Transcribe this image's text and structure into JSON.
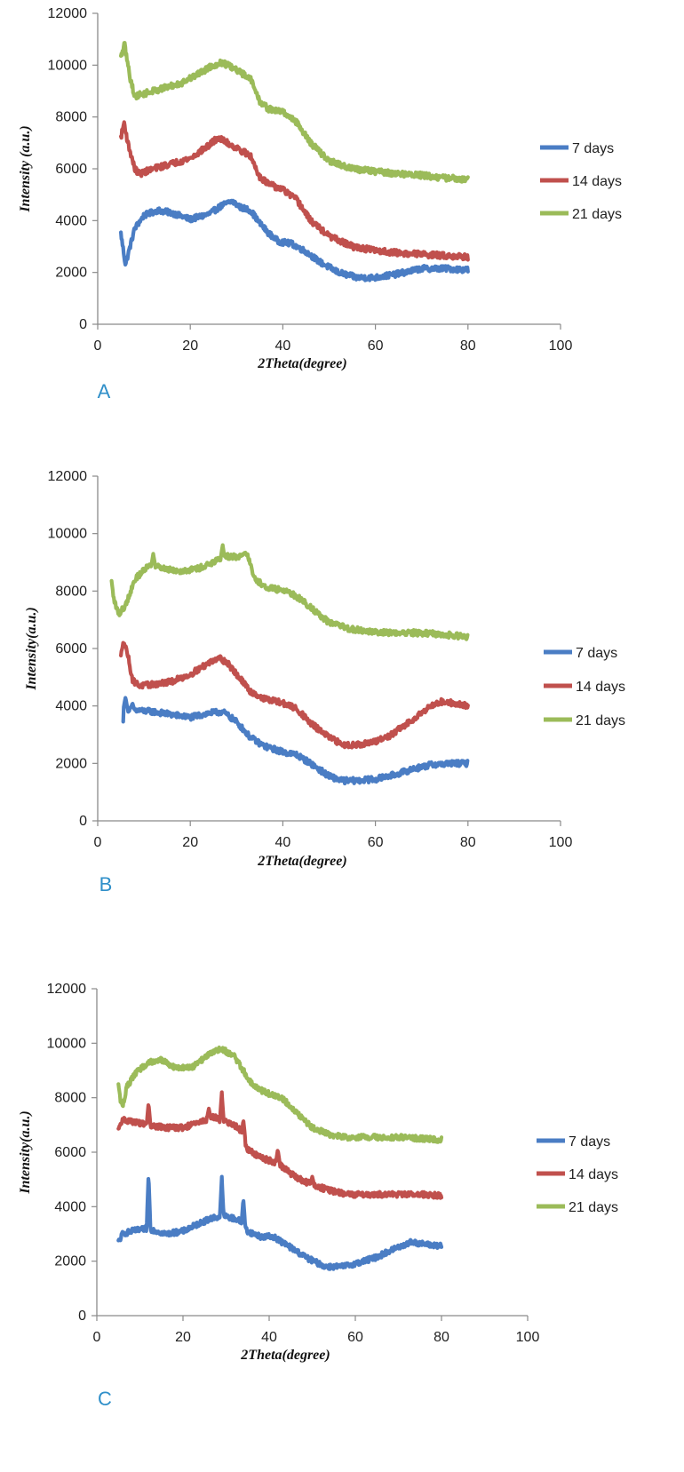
{
  "chart_data": [
    {
      "type": "line",
      "panel_label": "A",
      "xlabel": "2Theta(degree)",
      "ylabel": "Intensity (a.u.)",
      "xlim": [
        0,
        100
      ],
      "ylim": [
        0,
        12000
      ],
      "xticks": [
        0,
        20,
        40,
        60,
        80,
        100
      ],
      "yticks": [
        0,
        2000,
        4000,
        6000,
        8000,
        10000,
        12000
      ],
      "grid": false,
      "legend": "right",
      "series": [
        {
          "name": "7 days",
          "color": "#4a7dc4",
          "noise": 220,
          "spikes": [],
          "points": [
            [
              5,
              3500
            ],
            [
              5.5,
              2900
            ],
            [
              6,
              2300
            ],
            [
              7,
              3000
            ],
            [
              8,
              3700
            ],
            [
              10,
              4200
            ],
            [
              13,
              4400
            ],
            [
              16,
              4300
            ],
            [
              20,
              4050
            ],
            [
              24,
              4250
            ],
            [
              27,
              4600
            ],
            [
              29,
              4750
            ],
            [
              31,
              4500
            ],
            [
              33,
              4400
            ],
            [
              35,
              3900
            ],
            [
              37,
              3500
            ],
            [
              39,
              3200
            ],
            [
              42,
              3100
            ],
            [
              45,
              2800
            ],
            [
              48,
              2400
            ],
            [
              52,
              2000
            ],
            [
              56,
              1800
            ],
            [
              60,
              1800
            ],
            [
              65,
              1950
            ],
            [
              70,
              2150
            ],
            [
              75,
              2150
            ],
            [
              80,
              2100
            ]
          ]
        },
        {
          "name": "14 days",
          "color": "#c0504d",
          "noise": 230,
          "spikes": [],
          "points": [
            [
              5,
              7200
            ],
            [
              5.7,
              7800
            ],
            [
              6.5,
              7000
            ],
            [
              8,
              6000
            ],
            [
              9,
              5800
            ],
            [
              12,
              6000
            ],
            [
              16,
              6200
            ],
            [
              20,
              6400
            ],
            [
              24,
              6900
            ],
            [
              26,
              7200
            ],
            [
              28,
              7000
            ],
            [
              30,
              6800
            ],
            [
              33,
              6500
            ],
            [
              35,
              5700
            ],
            [
              37,
              5400
            ],
            [
              40,
              5200
            ],
            [
              43,
              4800
            ],
            [
              46,
              4000
            ],
            [
              50,
              3400
            ],
            [
              55,
              3000
            ],
            [
              60,
              2850
            ],
            [
              65,
              2750
            ],
            [
              70,
              2700
            ],
            [
              75,
              2650
            ],
            [
              80,
              2600
            ]
          ]
        },
        {
          "name": "21 days",
          "color": "#9bbb59",
          "noise": 230,
          "spikes": [],
          "points": [
            [
              5,
              10300
            ],
            [
              5.8,
              10800
            ],
            [
              7,
              9500
            ],
            [
              8,
              8800
            ],
            [
              10,
              8900
            ],
            [
              14,
              9100
            ],
            [
              18,
              9300
            ],
            [
              22,
              9700
            ],
            [
              25,
              10000
            ],
            [
              27,
              10100
            ],
            [
              29,
              9900
            ],
            [
              31,
              9700
            ],
            [
              33,
              9500
            ],
            [
              35,
              8600
            ],
            [
              37,
              8300
            ],
            [
              40,
              8200
            ],
            [
              43,
              7800
            ],
            [
              46,
              7000
            ],
            [
              50,
              6300
            ],
            [
              55,
              6000
            ],
            [
              60,
              5900
            ],
            [
              65,
              5800
            ],
            [
              70,
              5750
            ],
            [
              75,
              5650
            ],
            [
              80,
              5600
            ]
          ]
        }
      ]
    },
    {
      "type": "line",
      "panel_label": "B",
      "xlabel": "2Theta(degree)",
      "ylabel": "Intensity(a.u.)",
      "xlim": [
        0,
        100
      ],
      "ylim": [
        0,
        12000
      ],
      "xticks": [
        0,
        20,
        40,
        60,
        80,
        100
      ],
      "yticks": [
        0,
        2000,
        4000,
        6000,
        8000,
        10000,
        12000
      ],
      "grid": false,
      "legend": "right",
      "series": [
        {
          "name": "7 days",
          "color": "#4a7dc4",
          "noise": 200,
          "spikes": [
            [
              6,
              4300
            ],
            [
              7.5,
              4100
            ]
          ],
          "points": [
            [
              5.5,
              3400
            ],
            [
              6,
              3900
            ],
            [
              8,
              3850
            ],
            [
              12,
              3800
            ],
            [
              16,
              3700
            ],
            [
              20,
              3600
            ],
            [
              24,
              3750
            ],
            [
              27,
              3800
            ],
            [
              30,
              3450
            ],
            [
              33,
              2900
            ],
            [
              36,
              2600
            ],
            [
              40,
              2400
            ],
            [
              43,
              2300
            ],
            [
              46,
              2000
            ],
            [
              50,
              1550
            ],
            [
              53,
              1400
            ],
            [
              56,
              1400
            ],
            [
              60,
              1450
            ],
            [
              64,
              1600
            ],
            [
              68,
              1800
            ],
            [
              72,
              1950
            ],
            [
              76,
              2000
            ],
            [
              80,
              2000
            ]
          ]
        },
        {
          "name": "14 days",
          "color": "#c0504d",
          "noise": 200,
          "spikes": [],
          "points": [
            [
              5,
              5700
            ],
            [
              5.5,
              6300
            ],
            [
              6.5,
              5800
            ],
            [
              7.5,
              4900
            ],
            [
              9,
              4700
            ],
            [
              12,
              4750
            ],
            [
              16,
              4850
            ],
            [
              20,
              5100
            ],
            [
              24,
              5500
            ],
            [
              26,
              5700
            ],
            [
              28,
              5500
            ],
            [
              30,
              5100
            ],
            [
              33,
              4500
            ],
            [
              36,
              4250
            ],
            [
              40,
              4100
            ],
            [
              43,
              3900
            ],
            [
              46,
              3400
            ],
            [
              50,
              2900
            ],
            [
              53,
              2650
            ],
            [
              56,
              2650
            ],
            [
              60,
              2750
            ],
            [
              63,
              2950
            ],
            [
              67,
              3400
            ],
            [
              71,
              3900
            ],
            [
              74,
              4150
            ],
            [
              77,
              4100
            ],
            [
              80,
              4000
            ]
          ]
        },
        {
          "name": "21 days",
          "color": "#9bbb59",
          "noise": 200,
          "spikes": [
            [
              12,
              9300
            ],
            [
              27,
              9600
            ]
          ],
          "points": [
            [
              3,
              8300
            ],
            [
              3.5,
              7700
            ],
            [
              4.5,
              7200
            ],
            [
              6,
              7500
            ],
            [
              8,
              8400
            ],
            [
              11,
              8900
            ],
            [
              14,
              8800
            ],
            [
              18,
              8700
            ],
            [
              22,
              8800
            ],
            [
              25,
              9000
            ],
            [
              28,
              9200
            ],
            [
              31,
              9200
            ],
            [
              32,
              9400
            ],
            [
              34,
              8400
            ],
            [
              37,
              8100
            ],
            [
              41,
              8000
            ],
            [
              44,
              7700
            ],
            [
              47,
              7300
            ],
            [
              50,
              6900
            ],
            [
              54,
              6700
            ],
            [
              58,
              6600
            ],
            [
              63,
              6550
            ],
            [
              68,
              6550
            ],
            [
              74,
              6500
            ],
            [
              80,
              6400
            ]
          ]
        }
      ]
    },
    {
      "type": "line",
      "panel_label": "C",
      "xlabel": "2Theta(degree)",
      "ylabel": "Intensity(a.u.)",
      "xlim": [
        0,
        100
      ],
      "ylim": [
        0,
        12000
      ],
      "xticks": [
        0,
        20,
        40,
        60,
        80,
        100
      ],
      "yticks": [
        0,
        2000,
        4000,
        6000,
        8000,
        10000,
        12000
      ],
      "grid": false,
      "legend": "right",
      "series": [
        {
          "name": "7 days",
          "color": "#4a7dc4",
          "noise": 200,
          "spikes": [
            [
              12,
              5200
            ],
            [
              29,
              5100
            ],
            [
              34,
              4300
            ]
          ],
          "points": [
            [
              5,
              2700
            ],
            [
              6,
              3000
            ],
            [
              8,
              3100
            ],
            [
              12,
              3200
            ],
            [
              16,
              3000
            ],
            [
              20,
              3100
            ],
            [
              24,
              3400
            ],
            [
              27,
              3600
            ],
            [
              30,
              3650
            ],
            [
              33,
              3500
            ],
            [
              35,
              3100
            ],
            [
              38,
              2900
            ],
            [
              41,
              2900
            ],
            [
              45,
              2500
            ],
            [
              49,
              2100
            ],
            [
              53,
              1800
            ],
            [
              57,
              1800
            ],
            [
              61,
              1950
            ],
            [
              65,
              2150
            ],
            [
              69,
              2450
            ],
            [
              73,
              2700
            ],
            [
              77,
              2600
            ],
            [
              80,
              2550
            ]
          ]
        },
        {
          "name": "14 days",
          "color": "#c0504d",
          "noise": 200,
          "spikes": [
            [
              12,
              7800
            ],
            [
              26,
              7600
            ],
            [
              29,
              8200
            ],
            [
              34,
              7200
            ],
            [
              42,
              6100
            ],
            [
              50,
              5100
            ]
          ],
          "points": [
            [
              5,
              6800
            ],
            [
              6,
              7200
            ],
            [
              9,
              7100
            ],
            [
              12,
              7000
            ],
            [
              16,
              6900
            ],
            [
              20,
              6900
            ],
            [
              24,
              7100
            ],
            [
              27,
              7300
            ],
            [
              30,
              7100
            ],
            [
              33,
              6900
            ],
            [
              35,
              6100
            ],
            [
              38,
              5800
            ],
            [
              42,
              5600
            ],
            [
              46,
              5100
            ],
            [
              50,
              4800
            ],
            [
              54,
              4600
            ],
            [
              58,
              4450
            ],
            [
              62,
              4450
            ],
            [
              66,
              4450
            ],
            [
              70,
              4450
            ],
            [
              75,
              4450
            ],
            [
              80,
              4400
            ]
          ]
        },
        {
          "name": "21 days",
          "color": "#9bbb59",
          "noise": 200,
          "spikes": [
            [
              5,
              8500
            ]
          ],
          "points": [
            [
              5,
              8000
            ],
            [
              6,
              7700
            ],
            [
              7,
              8400
            ],
            [
              9,
              8900
            ],
            [
              12,
              9300
            ],
            [
              15,
              9400
            ],
            [
              18,
              9100
            ],
            [
              22,
              9100
            ],
            [
              26,
              9600
            ],
            [
              29,
              9800
            ],
            [
              32,
              9500
            ],
            [
              34,
              9000
            ],
            [
              36,
              8500
            ],
            [
              39,
              8200
            ],
            [
              43,
              8000
            ],
            [
              46,
              7500
            ],
            [
              50,
              6900
            ],
            [
              54,
              6650
            ],
            [
              58,
              6550
            ],
            [
              62,
              6550
            ],
            [
              66,
              6550
            ],
            [
              70,
              6550
            ],
            [
              75,
              6500
            ],
            [
              80,
              6450
            ]
          ]
        }
      ]
    }
  ]
}
